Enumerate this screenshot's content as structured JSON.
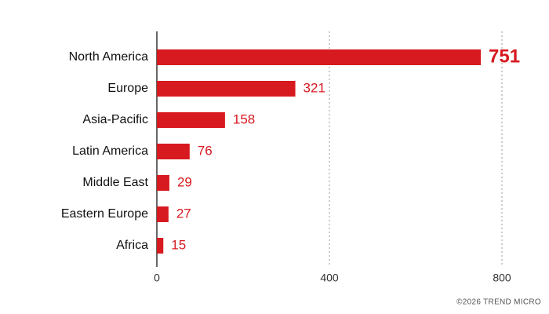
{
  "chart_data": {
    "type": "hbar",
    "categories": [
      "North America",
      "Europe",
      "Asia-Pacific",
      "Latin America",
      "Middle East",
      "Eastern Europe",
      "Africa"
    ],
    "values": [
      751,
      321,
      158,
      76,
      29,
      27,
      15
    ],
    "color": "#d71920",
    "xlim": [
      0,
      800
    ],
    "xticks": [
      0,
      400,
      800
    ],
    "grid": true,
    "footer": "©2026 TREND MICRO"
  }
}
